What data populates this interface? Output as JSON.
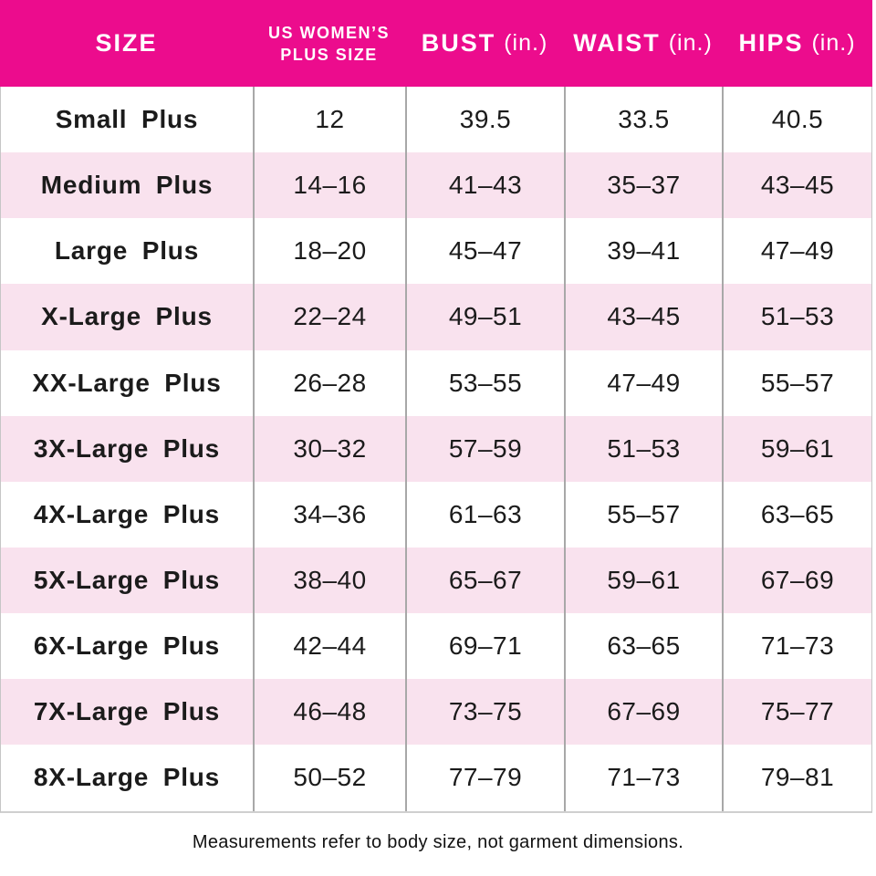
{
  "colors": {
    "header_bg": "#ec0c8d",
    "header_text": "#ffffff",
    "row_bg": "#ffffff",
    "row_alt_bg": "#f9e2ee",
    "body_text": "#1b1b1b",
    "divider": "#a8a8a8"
  },
  "table": {
    "columns": [
      {
        "label": "SIZE",
        "unit": ""
      },
      {
        "label": "US WOMEN’S PLUS SIZE",
        "unit": ""
      },
      {
        "label": "BUST",
        "unit": "(in.)"
      },
      {
        "label": "WAIST",
        "unit": "(in.)"
      },
      {
        "label": "HIPS",
        "unit": "(in.)"
      }
    ],
    "rows": [
      [
        "Small Plus",
        "12",
        "39.5",
        "33.5",
        "40.5"
      ],
      [
        "Medium Plus",
        "14–16",
        "41–43",
        "35–37",
        "43–45"
      ],
      [
        "Large Plus",
        "18–20",
        "45–47",
        "39–41",
        "47–49"
      ],
      [
        "X-Large Plus",
        "22–24",
        "49–51",
        "43–45",
        "51–53"
      ],
      [
        "XX-Large Plus",
        "26–28",
        "53–55",
        "47–49",
        "55–57"
      ],
      [
        "3X-Large Plus",
        "30–32",
        "57–59",
        "51–53",
        "59–61"
      ],
      [
        "4X-Large Plus",
        "34–36",
        "61–63",
        "55–57",
        "63–65"
      ],
      [
        "5X-Large Plus",
        "38–40",
        "65–67",
        "59–61",
        "67–69"
      ],
      [
        "6X-Large Plus",
        "42–44",
        "69–71",
        "63–65",
        "71–73"
      ],
      [
        "7X-Large Plus",
        "46–48",
        "73–75",
        "67–69",
        "75–77"
      ],
      [
        "8X-Large Plus",
        "50–52",
        "77–79",
        "71–73",
        "79–81"
      ]
    ]
  },
  "footnote": "Measurements refer to body size, not garment dimensions.",
  "chart_data": {
    "type": "table",
    "title": "US Women's Plus Size Chart",
    "columns": [
      "SIZE",
      "US WOMEN'S PLUS SIZE",
      "BUST (in.)",
      "WAIST (in.)",
      "HIPS (in.)"
    ],
    "rows": [
      [
        "Small Plus",
        "12",
        "39.5",
        "33.5",
        "40.5"
      ],
      [
        "Medium Plus",
        "14–16",
        "41–43",
        "35–37",
        "43–45"
      ],
      [
        "Large Plus",
        "18–20",
        "45–47",
        "39–41",
        "47–49"
      ],
      [
        "X-Large Plus",
        "22–24",
        "49–51",
        "43–45",
        "51–53"
      ],
      [
        "XX-Large Plus",
        "26–28",
        "53–55",
        "47–49",
        "55–57"
      ],
      [
        "3X-Large Plus",
        "30–32",
        "57–59",
        "51–53",
        "59–61"
      ],
      [
        "4X-Large Plus",
        "34–36",
        "61–63",
        "55–57",
        "63–65"
      ],
      [
        "5X-Large Plus",
        "38–40",
        "65–67",
        "59–61",
        "67–69"
      ],
      [
        "6X-Large Plus",
        "42–44",
        "69–71",
        "63–65",
        "71–73"
      ],
      [
        "7X-Large Plus",
        "46–48",
        "73–75",
        "67–69",
        "75–77"
      ],
      [
        "8X-Large Plus",
        "50–52",
        "77–79",
        "71–73",
        "79–81"
      ]
    ],
    "notes": "Measurements refer to body size, not garment dimensions.",
    "layout": "header row magenta, body rows alternate white / light pink"
  }
}
